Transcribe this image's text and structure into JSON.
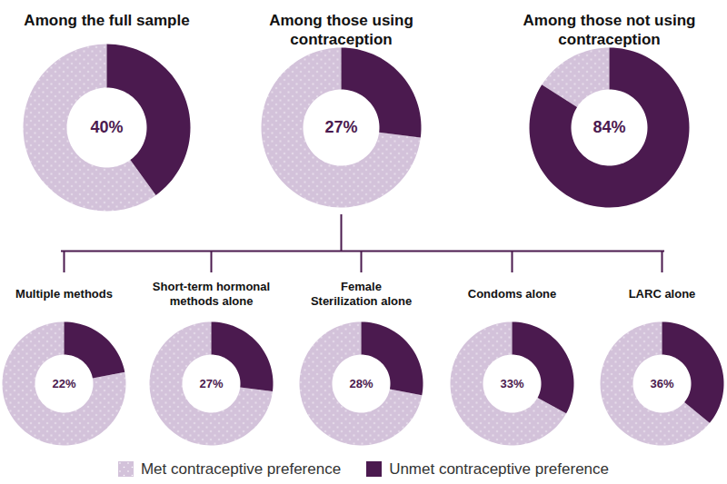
{
  "chart_data": [
    {
      "type": "pie",
      "title": "Among the full sample",
      "categories": [
        "Met contraceptive preference",
        "Unmet contraceptive preference"
      ],
      "values": [
        60,
        40
      ],
      "value_labels": [
        null,
        "40%"
      ],
      "colors": [
        "#d3c2da",
        "#4b1a4f"
      ],
      "data_labels": true,
      "legend": "bottom"
    },
    {
      "type": "pie",
      "title": "Among those using\ncontraception",
      "categories": [
        "Met contraceptive preference",
        "Unmet contraceptive preference"
      ],
      "values": [
        73,
        27
      ],
      "value_labels": [
        null,
        "27%"
      ],
      "colors": [
        "#d3c2da",
        "#4b1a4f"
      ],
      "data_labels": true,
      "legend": "bottom"
    },
    {
      "type": "pie",
      "title": "Among those not using\ncontraception",
      "categories": [
        "Met contraceptive preference",
        "Unmet contraceptive preference"
      ],
      "values": [
        16,
        84
      ],
      "value_labels": [
        null,
        "84%"
      ],
      "colors": [
        "#d3c2da",
        "#4b1a4f"
      ],
      "data_labels": true,
      "legend": "bottom"
    },
    {
      "type": "pie",
      "title": "Multiple methods",
      "categories": [
        "Met contraceptive preference",
        "Unmet contraceptive preference"
      ],
      "values": [
        78,
        22
      ],
      "value_labels": [
        null,
        "22%"
      ],
      "colors": [
        "#d3c2da",
        "#4b1a4f"
      ],
      "data_labels": true,
      "legend": "bottom"
    },
    {
      "type": "pie",
      "title": "Short-term hormonal\nmethods alone",
      "categories": [
        "Met contraceptive preference",
        "Unmet contraceptive preference"
      ],
      "values": [
        73,
        27
      ],
      "value_labels": [
        null,
        "27%"
      ],
      "colors": [
        "#d3c2da",
        "#4b1a4f"
      ],
      "data_labels": true,
      "legend": "bottom"
    },
    {
      "type": "pie",
      "title": "Female\nSterilization alone",
      "categories": [
        "Met contraceptive preference",
        "Unmet contraceptive preference"
      ],
      "values": [
        72,
        28
      ],
      "value_labels": [
        null,
        "28%"
      ],
      "colors": [
        "#d3c2da",
        "#4b1a4f"
      ],
      "data_labels": true,
      "legend": "bottom"
    },
    {
      "type": "pie",
      "title": "Condoms alone",
      "categories": [
        "Met contraceptive preference",
        "Unmet contraceptive preference"
      ],
      "values": [
        67,
        33
      ],
      "value_labels": [
        null,
        "33%"
      ],
      "colors": [
        "#d3c2da",
        "#4b1a4f"
      ],
      "data_labels": true,
      "legend": "bottom"
    },
    {
      "type": "pie",
      "title": "LARC alone",
      "categories": [
        "Met contraceptive preference",
        "Unmet contraceptive preference"
      ],
      "values": [
        64,
        36
      ],
      "value_labels": [
        null,
        "36%"
      ],
      "colors": [
        "#d3c2da",
        "#4b1a4f"
      ],
      "data_labels": true,
      "legend": "bottom"
    }
  ]
}
